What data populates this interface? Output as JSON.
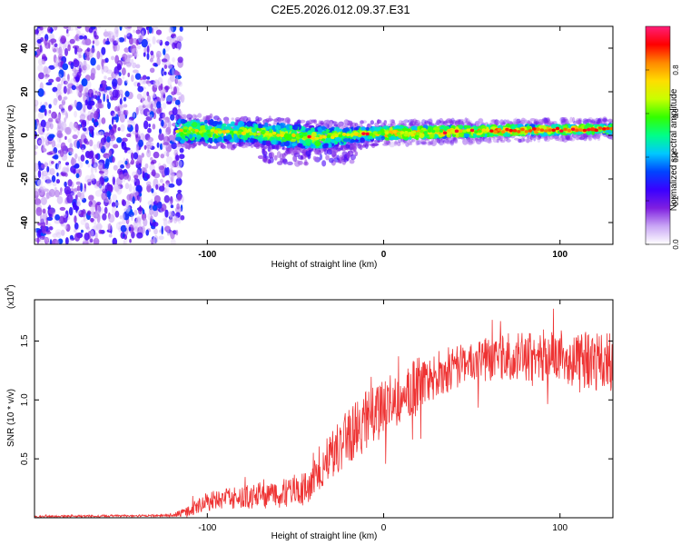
{
  "title": "C2E5.2026.012.09.37.E31",
  "chart_data": [
    {
      "type": "heatmap",
      "name": "spectrogram",
      "xlabel": "Height of straight line (km)",
      "ylabel": "Frequency (Hz)",
      "xlim": [
        -198,
        130
      ],
      "ylim": [
        -50,
        50
      ],
      "xticks": [
        "-100",
        "0",
        "100"
      ],
      "xtick_values": [
        -100,
        0,
        100
      ],
      "yticks": [
        "-40",
        "-20",
        "0",
        "20",
        "40"
      ],
      "ytick_values": [
        -40,
        -20,
        0,
        20,
        40
      ],
      "noise_region_x": [
        -198,
        -117
      ],
      "signal_start_x": -117,
      "signal_band": [
        {
          "x": -117,
          "center": 2,
          "half_width": 5
        },
        {
          "x": -80,
          "center": 1.5,
          "half_width": 4
        },
        {
          "x": -40,
          "center": -1,
          "half_width": 5
        },
        {
          "x": -20,
          "center": 0,
          "half_width": 3
        },
        {
          "x": 0,
          "center": 1,
          "half_width": 2.5
        },
        {
          "x": 60,
          "center": 2,
          "half_width": 2
        },
        {
          "x": 130,
          "center": 3,
          "half_width": 1.5
        }
      ],
      "colorbar": {
        "label": "Normalized spectral amplitude",
        "ticks": [
          "0.0",
          "0.2",
          "0.4",
          "0.6",
          "0.8"
        ],
        "tick_values": [
          0.0,
          0.2,
          0.4,
          0.6,
          0.8
        ],
        "range": [
          0,
          1
        ],
        "colors": [
          "#ffffff",
          "#c9a6f5",
          "#7f1fe0",
          "#3a00ff",
          "#0044ff",
          "#00c8ff",
          "#00ff88",
          "#33ff00",
          "#c8ff00",
          "#ffdd00",
          "#ff8800",
          "#ff0000",
          "#ff1e78"
        ]
      }
    },
    {
      "type": "line",
      "name": "snr",
      "xlabel": "Height of straight line (km)",
      "ylabel": "SNR (10 * v/v)",
      "multiplier": "(x10",
      "multiplier_exp": "4",
      "multiplier_close": ")",
      "xlim": [
        -198,
        130
      ],
      "ylim": [
        0,
        1.85
      ],
      "xticks": [
        "-100",
        "0",
        "100"
      ],
      "xtick_values": [
        -100,
        0,
        100
      ],
      "yticks": [
        "0.5",
        "1.0",
        "1.5"
      ],
      "ytick_values": [
        0.5,
        1.0,
        1.5
      ],
      "color": "#ee3333",
      "trend_x": [
        -198,
        -120,
        -112,
        -100,
        -80,
        -60,
        -42,
        -35,
        -20,
        -5,
        10,
        30,
        50,
        70,
        90,
        110,
        130
      ],
      "trend_y": [
        0.01,
        0.02,
        0.05,
        0.14,
        0.17,
        0.2,
        0.26,
        0.45,
        0.7,
        0.88,
        1.05,
        1.22,
        1.33,
        1.37,
        1.38,
        1.35,
        1.3
      ],
      "noise_amplitude": [
        0.008,
        0.01,
        0.05,
        0.08,
        0.1,
        0.12,
        0.15,
        0.2,
        0.24,
        0.26,
        0.25,
        0.2,
        0.18,
        0.2,
        0.22,
        0.24,
        0.26
      ]
    }
  ]
}
